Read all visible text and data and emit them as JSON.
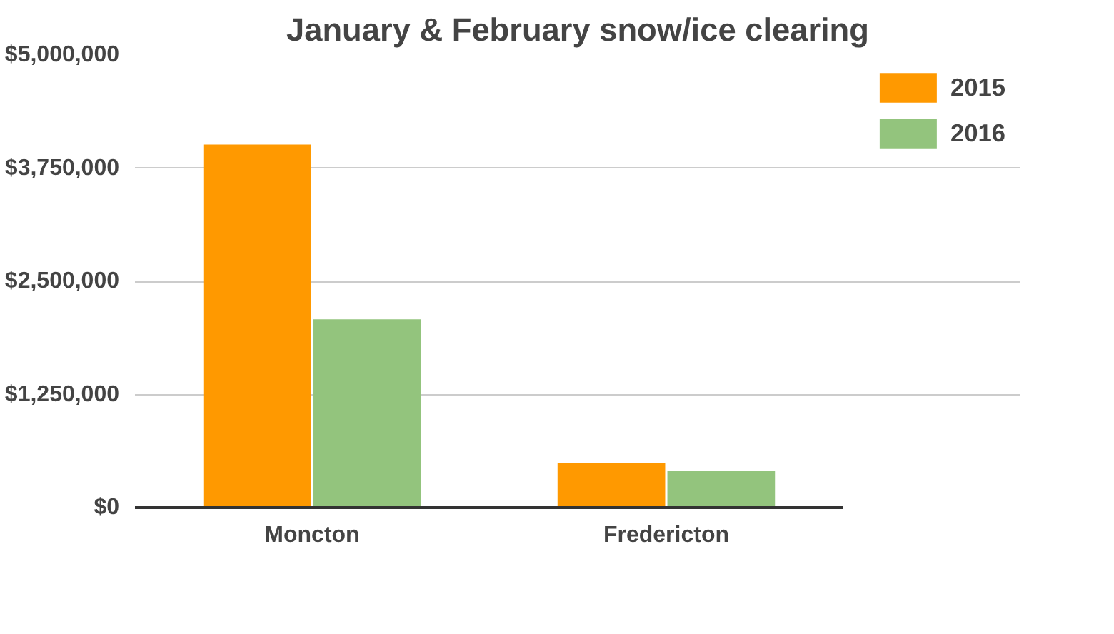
{
  "chart_data": {
    "type": "bar",
    "title": "January & February snow/ice clearing",
    "categories": [
      "Moncton",
      "Fredericton"
    ],
    "series": [
      {
        "name": "2015",
        "color": "#ff9900",
        "values": [
          4010000,
          490000
        ]
      },
      {
        "name": "2016",
        "color": "#93c47d",
        "values": [
          2080000,
          410000
        ]
      }
    ],
    "ylim": [
      0,
      5000000
    ],
    "yticks": [
      {
        "value": 0,
        "label": "$0"
      },
      {
        "value": 1250000,
        "label": "$1,250,000"
      },
      {
        "value": 2500000,
        "label": "$2,500,000"
      },
      {
        "value": 3750000,
        "label": "$3,750,000"
      },
      {
        "value": 5000000,
        "label": "$5,000,000"
      }
    ],
    "grid": "y",
    "legend": "top right"
  }
}
